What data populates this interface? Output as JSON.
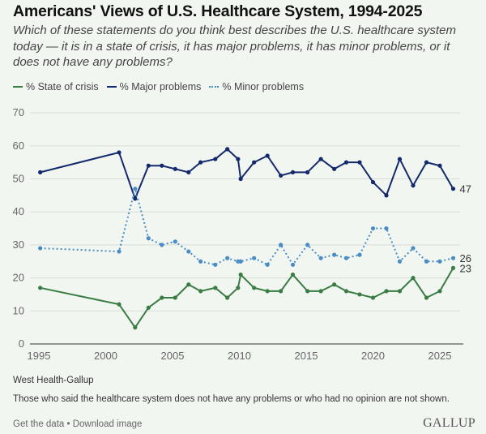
{
  "title": "Americans' Views of U.S. Healthcare System, 1994-2025",
  "subtitle": "Which of these statements do you think best describes the U.S. healthcare system today — it is in a state of crisis, it has major problems, it has minor problems, or it does not have any problems?",
  "source": "West Health-Gallup",
  "note": "Those who said the healthcare system does not have any problems or who had no opinion are not shown.",
  "links": {
    "get_data": "Get the data",
    "separator": " • ",
    "download": "Download image"
  },
  "logo": "GALLUP",
  "chart_data": {
    "type": "line",
    "title": "",
    "xlabel": "",
    "ylabel": "",
    "xlim": [
      1994.5,
      2026.5
    ],
    "ylim": [
      0,
      70
    ],
    "xticks": [
      1995,
      2000,
      2005,
      2010,
      2015,
      2020,
      2025
    ],
    "yticks": [
      0,
      10,
      20,
      30,
      40,
      50,
      60,
      70
    ],
    "grid": true,
    "legend_position": "top-left",
    "x": [
      1995.1,
      2001.0,
      2002.2,
      2003.2,
      2004.2,
      2005.2,
      2006.2,
      2007.1,
      2008.2,
      2009.1,
      2009.9,
      2010.1,
      2011.1,
      2012.1,
      2013.1,
      2014.0,
      2015.1,
      2016.1,
      2017.1,
      2018.0,
      2019.0,
      2020.0,
      2021.0,
      2022.0,
      2023.0,
      2024.0,
      2025.0,
      2026.0
    ],
    "series": [
      {
        "name": "% State of crisis",
        "color": "#3a7d44",
        "style": "solid",
        "end_label": "23",
        "values": [
          17,
          12,
          5,
          11,
          14,
          14,
          18,
          16,
          17,
          14,
          17,
          21,
          17,
          16,
          16,
          21,
          16,
          16,
          18,
          16,
          15,
          14,
          16,
          16,
          20,
          14,
          16,
          23
        ]
      },
      {
        "name": "% Major problems",
        "color": "#13296b",
        "style": "solid",
        "end_label": "47",
        "values": [
          52,
          58,
          44,
          54,
          54,
          53,
          52,
          55,
          56,
          59,
          56,
          50,
          55,
          57,
          51,
          52,
          52,
          56,
          53,
          55,
          55,
          49,
          45,
          56,
          48,
          55,
          54,
          47
        ]
      },
      {
        "name": "% Minor problems",
        "color": "#4a8cc4",
        "style": "dotted",
        "end_label": "26",
        "values": [
          29,
          28,
          47,
          32,
          30,
          31,
          28,
          25,
          24,
          26,
          25,
          25,
          26,
          24,
          30,
          24,
          30,
          26,
          27,
          26,
          27,
          35,
          35,
          25,
          29,
          25,
          25,
          26
        ]
      }
    ]
  }
}
